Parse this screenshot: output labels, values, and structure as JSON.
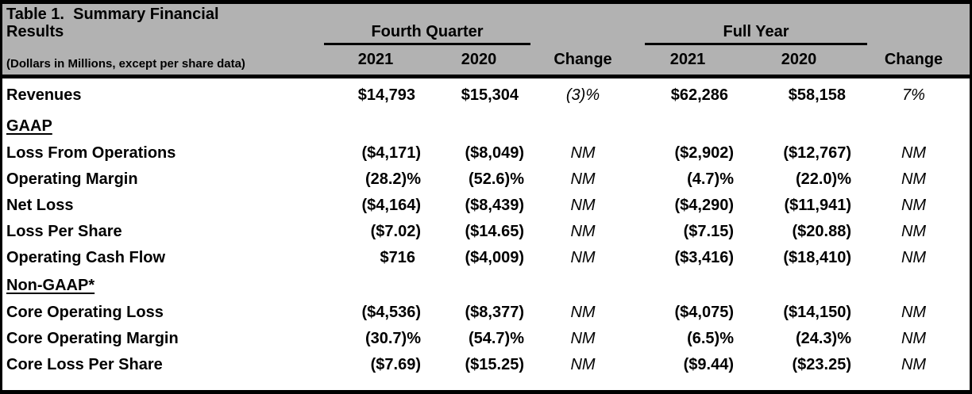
{
  "colors": {
    "header_bg": "#b2b2b2",
    "border": "#000000",
    "text": "#000000",
    "body_bg": "#ffffff"
  },
  "header": {
    "title_line1": "Table 1.  Summary Financial",
    "title_line2": "Results",
    "units_note": "(Dollars in Millions, except per share data)",
    "groups": {
      "fourth_quarter": "Fourth Quarter",
      "full_year": "Full Year"
    },
    "columns": {
      "q4_2021": "2021",
      "q4_2020": "2020",
      "q4_change": "Change",
      "fy_2021": "2021",
      "fy_2020": "2020",
      "fy_change": "Change"
    }
  },
  "rows": [
    {
      "label": "Revenues",
      "q4_2021": "$14,793",
      "q4_2020": "$15,304",
      "q4_change": "(3)%",
      "fy_2021": "$62,286",
      "fy_2020": "$58,158",
      "fy_change": "7%"
    },
    {
      "label": "GAAP",
      "section": true
    },
    {
      "label": "Loss From Operations",
      "q4_2021": "($4,171)",
      "q4_2020": "($8,049)",
      "q4_change": "NM",
      "fy_2021": "($2,902)",
      "fy_2020": "($12,767)",
      "fy_change": "NM"
    },
    {
      "label": "Operating Margin",
      "q4_2021": "(28.2)%",
      "q4_2020": "(52.6)%",
      "q4_change": "NM",
      "fy_2021": "(4.7)%",
      "fy_2020": "(22.0)%",
      "fy_change": "NM"
    },
    {
      "label": "Net Loss",
      "q4_2021": "($4,164)",
      "q4_2020": "($8,439)",
      "q4_change": "NM",
      "fy_2021": "($4,290)",
      "fy_2020": "($11,941)",
      "fy_change": "NM"
    },
    {
      "label": "Loss Per Share",
      "q4_2021": "($7.02)",
      "q4_2020": "($14.65)",
      "q4_change": "NM",
      "fy_2021": "($7.15)",
      "fy_2020": "($20.88)",
      "fy_change": "NM"
    },
    {
      "label": "Operating Cash Flow",
      "q4_2021": "$716",
      "q4_2020": "($4,009)",
      "q4_change": "NM",
      "fy_2021": "($3,416)",
      "fy_2020": "($18,410)",
      "fy_change": "NM"
    },
    {
      "label": "Non-GAAP*",
      "section": true
    },
    {
      "label": "Core Operating Loss",
      "q4_2021": "($4,536)",
      "q4_2020": "($8,377)",
      "q4_change": "NM",
      "fy_2021": "($4,075)",
      "fy_2020": "($14,150)",
      "fy_change": "NM"
    },
    {
      "label": "Core Operating Margin",
      "q4_2021": "(30.7)%",
      "q4_2020": "(54.7)%",
      "q4_change": "NM",
      "fy_2021": "(6.5)%",
      "fy_2020": "(24.3)%",
      "fy_change": "NM"
    },
    {
      "label": "Core Loss Per Share",
      "q4_2021": "($7.69)",
      "q4_2020": "($15.25)",
      "q4_change": "NM",
      "fy_2021": "($9.44)",
      "fy_2020": "($23.25)",
      "fy_change": "NM"
    }
  ]
}
